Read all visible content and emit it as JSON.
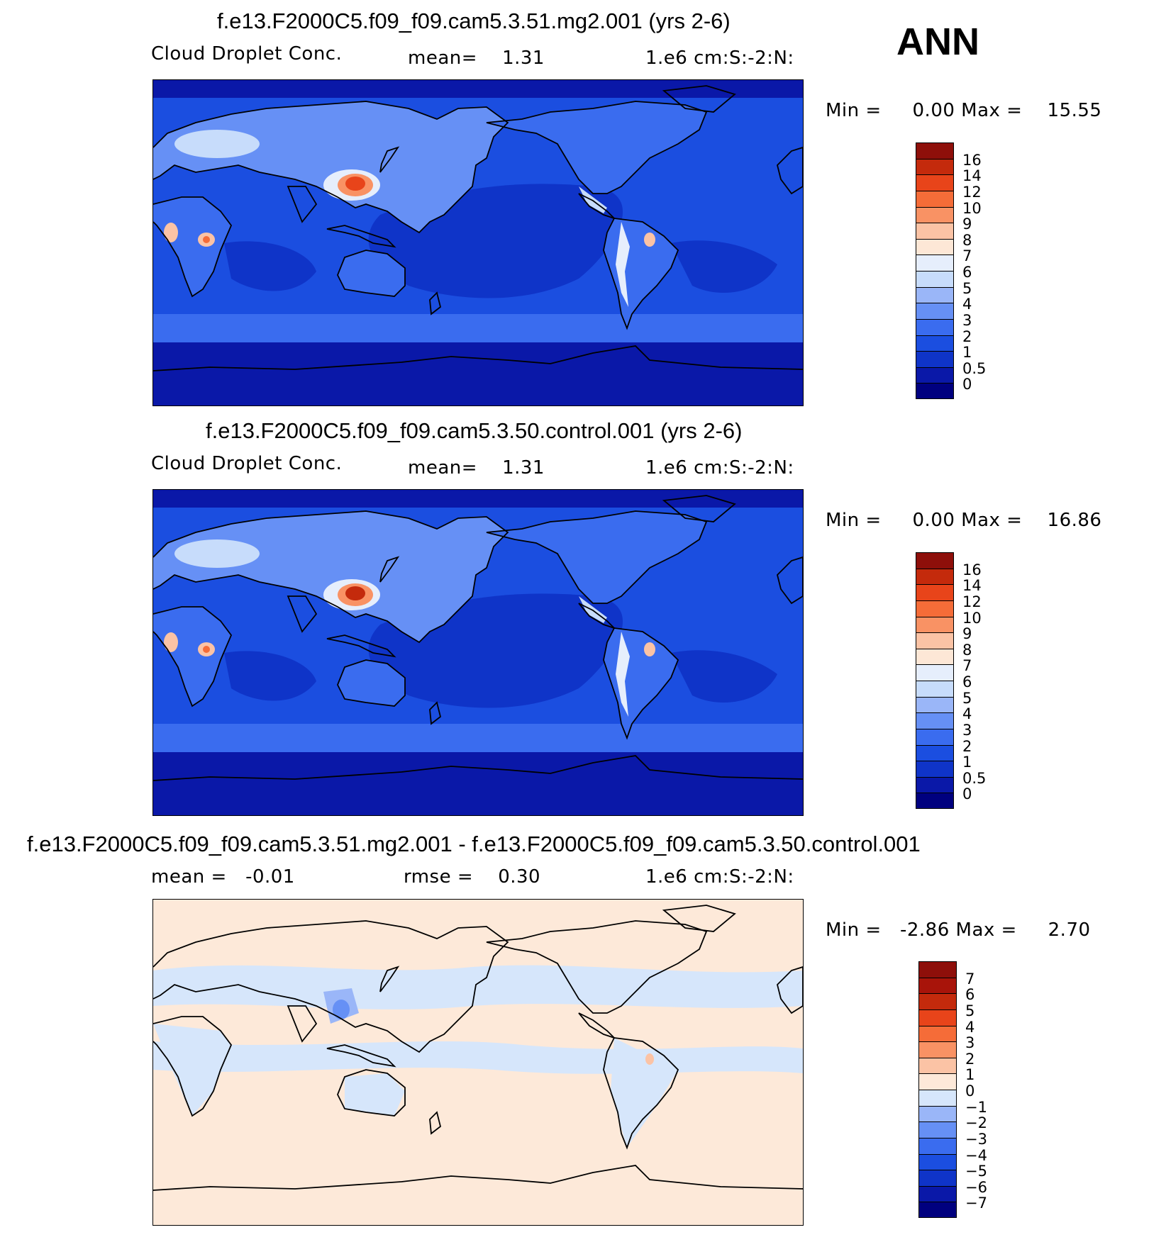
{
  "season": "ANN",
  "chart_data": [
    {
      "type": "heatmap",
      "title": "f.e13.F2000C5.f09_f09.cam5.3.51.mg2.001 (yrs 2-6)",
      "variable": "Cloud Droplet Conc.",
      "mean_text": "mean=    1.31",
      "mean": 1.31,
      "units": "1.e6 cm:S:-2:N:",
      "min_max_text": "Min =     0.00 Max =    15.55",
      "min": 0.0,
      "max": 15.55,
      "colorbar_levels": [
        "0",
        "0.5",
        "1",
        "2",
        "3",
        "4",
        "5",
        "6",
        "7",
        "8",
        "9",
        "10",
        "12",
        "14",
        "16"
      ],
      "colorbar_colors": [
        "#00007f",
        "#0a18a8",
        "#0f34c8",
        "#1b4ee0",
        "#3a6cef",
        "#6690f5",
        "#9ab6f8",
        "#c7dcfb",
        "#e6eefc",
        "#fde7d6",
        "#fbc3a5",
        "#f99264",
        "#f56c38",
        "#e8441a",
        "#c42a0c",
        "#8e0f0a"
      ],
      "features": [
        "asia-maximum",
        "central-africa-maximum",
        "south-america-maximum",
        "ocean-minimum"
      ]
    },
    {
      "type": "heatmap",
      "title": "f.e13.F2000C5.f09_f09.cam5.3.50.control.001 (yrs 2-6)",
      "variable": "Cloud Droplet Conc.",
      "mean_text": "mean=    1.31",
      "mean": 1.31,
      "units": "1.e6 cm:S:-2:N:",
      "min_max_text": "Min =     0.00 Max =    16.86",
      "min": 0.0,
      "max": 16.86,
      "colorbar_levels": [
        "0",
        "0.5",
        "1",
        "2",
        "3",
        "4",
        "5",
        "6",
        "7",
        "8",
        "9",
        "10",
        "12",
        "14",
        "16"
      ],
      "colorbar_colors": [
        "#00007f",
        "#0a18a8",
        "#0f34c8",
        "#1b4ee0",
        "#3a6cef",
        "#6690f5",
        "#9ab6f8",
        "#c7dcfb",
        "#e6eefc",
        "#fde7d6",
        "#fbc3a5",
        "#f99264",
        "#f56c38",
        "#e8441a",
        "#c42a0c",
        "#8e0f0a"
      ],
      "features": [
        "asia-maximum",
        "central-africa-maximum",
        "south-america-maximum",
        "ocean-minimum"
      ]
    },
    {
      "type": "heatmap",
      "title": "f.e13.F2000C5.f09_f09.cam5.3.51.mg2.001 - f.e13.F2000C5.f09_f09.cam5.3.50.control.001",
      "mean_text": "mean =   -0.01",
      "mean": -0.01,
      "rmse_text": "rmse =    0.30",
      "rmse": 0.3,
      "units": "1.e6 cm:S:-2:N:",
      "min_max_text": "Min =   -2.86 Max =     2.70",
      "min": -2.86,
      "max": 2.7,
      "colorbar_levels": [
        "-7",
        "-6",
        "-5",
        "-4",
        "-3",
        "-2",
        "-1",
        "0",
        "1",
        "2",
        "3",
        "4",
        "5",
        "6",
        "7"
      ],
      "colorbar_colors": [
        "#00007f",
        "#0a18a8",
        "#0f34c8",
        "#1b4ee0",
        "#3a6cef",
        "#6690f5",
        "#9ab6f8",
        "#d6e6fb",
        "#fde9d9",
        "#fbc3a5",
        "#f99264",
        "#f56c38",
        "#e8441a",
        "#c42a0c",
        "#a8140a",
        "#8e0f0a"
      ],
      "features": [
        "near-zero-difference",
        "asia-negative"
      ]
    }
  ]
}
